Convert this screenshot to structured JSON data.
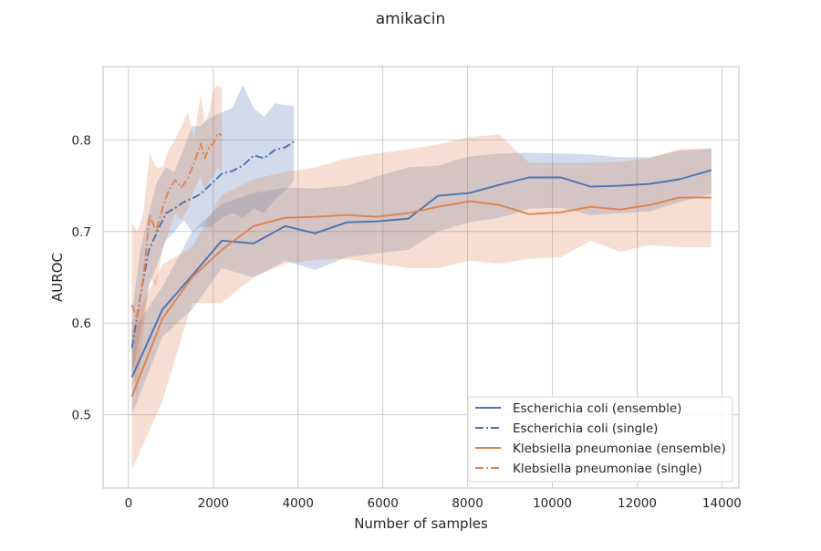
{
  "chart_data": {
    "type": "line",
    "title": "amikacin",
    "xlabel": "Number of samples",
    "ylabel": "AUROC",
    "xlim": [
      -600,
      14400
    ],
    "ylim": [
      0.42,
      0.88
    ],
    "xticks": [
      0,
      2000,
      4000,
      6000,
      8000,
      10000,
      12000,
      14000
    ],
    "yticks": [
      0.5,
      0.6,
      0.7,
      0.8
    ],
    "xtick_labels": [
      "0",
      "2000",
      "4000",
      "6000",
      "8000",
      "10000",
      "12000",
      "14000"
    ],
    "ytick_labels": [
      "0.5",
      "0.6",
      "0.7",
      "0.8"
    ],
    "grid": true,
    "legend_position": "lower-right",
    "series": [
      {
        "name": "Escherichia coli (ensemble)",
        "color": "#4c72b0",
        "style": "solid",
        "x": [
          80,
          800,
          1500,
          2200,
          2950,
          3700,
          4400,
          5150,
          5850,
          6600,
          7300,
          8050,
          8750,
          9450,
          10200,
          10900,
          11600,
          12300,
          13000,
          13750
        ],
        "y": [
          0.541,
          0.615,
          0.652,
          0.69,
          0.687,
          0.706,
          0.698,
          0.71,
          0.711,
          0.714,
          0.739,
          0.742,
          0.751,
          0.759,
          0.759,
          0.749,
          0.75,
          0.752,
          0.757,
          0.767
        ],
        "y_low": [
          0.5,
          0.585,
          0.615,
          0.66,
          0.65,
          0.668,
          0.658,
          0.672,
          0.676,
          0.68,
          0.7,
          0.71,
          0.715,
          0.725,
          0.726,
          0.718,
          0.72,
          0.722,
          0.732,
          0.741
        ],
        "y_high": [
          0.59,
          0.64,
          0.7,
          0.73,
          0.742,
          0.748,
          0.747,
          0.75,
          0.76,
          0.77,
          0.772,
          0.782,
          0.785,
          0.786,
          0.785,
          0.784,
          0.781,
          0.781,
          0.788,
          0.791
        ]
      },
      {
        "name": "Escherichia coli (single)",
        "color": "#4c72b0",
        "style": "dashdot",
        "x": [
          80,
          280,
          480,
          680,
          880,
          1080,
          1300,
          1500,
          1700,
          1950,
          2200,
          2450,
          2700,
          2950,
          3200,
          3450,
          3700,
          3900
        ],
        "y": [
          0.573,
          0.63,
          0.68,
          0.7,
          0.72,
          0.725,
          0.732,
          0.736,
          0.741,
          0.752,
          0.763,
          0.766,
          0.772,
          0.783,
          0.78,
          0.789,
          0.792,
          0.798
        ],
        "y_low": [
          0.54,
          0.59,
          0.64,
          0.665,
          0.69,
          0.7,
          0.712,
          0.7,
          0.705,
          0.705,
          0.715,
          0.72,
          0.715,
          0.725,
          0.72,
          0.735,
          0.745,
          0.755
        ],
        "y_high": [
          0.61,
          0.68,
          0.72,
          0.755,
          0.77,
          0.765,
          0.79,
          0.815,
          0.815,
          0.825,
          0.83,
          0.835,
          0.86,
          0.835,
          0.825,
          0.84,
          0.838,
          0.837
        ]
      },
      {
        "name": "Klebsiella pneumoniae (ensemble)",
        "color": "#dd8452",
        "style": "solid",
        "x": [
          80,
          800,
          1500,
          2200,
          2950,
          3700,
          4400,
          5150,
          5850,
          6600,
          7300,
          8050,
          8750,
          9450,
          10200,
          10900,
          11600,
          12300,
          13000,
          13750
        ],
        "y": [
          0.52,
          0.605,
          0.65,
          0.68,
          0.706,
          0.715,
          0.716,
          0.718,
          0.716,
          0.72,
          0.727,
          0.733,
          0.729,
          0.719,
          0.721,
          0.727,
          0.724,
          0.729,
          0.737,
          0.737
        ],
        "y_low": [
          0.44,
          0.515,
          0.622,
          0.622,
          0.65,
          0.665,
          0.669,
          0.67,
          0.665,
          0.66,
          0.66,
          0.668,
          0.665,
          0.67,
          0.672,
          0.69,
          0.678,
          0.685,
          0.683,
          0.683
        ],
        "y_high": [
          0.6,
          0.664,
          0.683,
          0.74,
          0.757,
          0.765,
          0.77,
          0.78,
          0.785,
          0.79,
          0.795,
          0.803,
          0.806,
          0.775,
          0.775,
          0.775,
          0.776,
          0.78,
          0.79,
          0.79
        ]
      },
      {
        "name": "Klebsiella pneumoniae (single)",
        "color": "#dd8452",
        "style": "dashdot",
        "x": [
          80,
          200,
          350,
          500,
          650,
          800,
          950,
          1100,
          1250,
          1400,
          1550,
          1700,
          1800,
          1900,
          2000,
          2100,
          2200
        ],
        "y": [
          0.62,
          0.605,
          0.65,
          0.718,
          0.7,
          0.725,
          0.745,
          0.756,
          0.748,
          0.758,
          0.775,
          0.796,
          0.78,
          0.792,
          0.796,
          0.807,
          0.805
        ],
        "y_low": [
          0.56,
          0.52,
          0.59,
          0.65,
          0.64,
          0.68,
          0.7,
          0.72,
          0.712,
          0.725,
          0.745,
          0.76,
          0.745,
          0.755,
          0.76,
          0.77,
          0.765
        ],
        "y_high": [
          0.71,
          0.7,
          0.72,
          0.785,
          0.77,
          0.77,
          0.79,
          0.8,
          0.815,
          0.83,
          0.8,
          0.85,
          0.82,
          0.83,
          0.855,
          0.86,
          0.855
        ]
      }
    ]
  }
}
